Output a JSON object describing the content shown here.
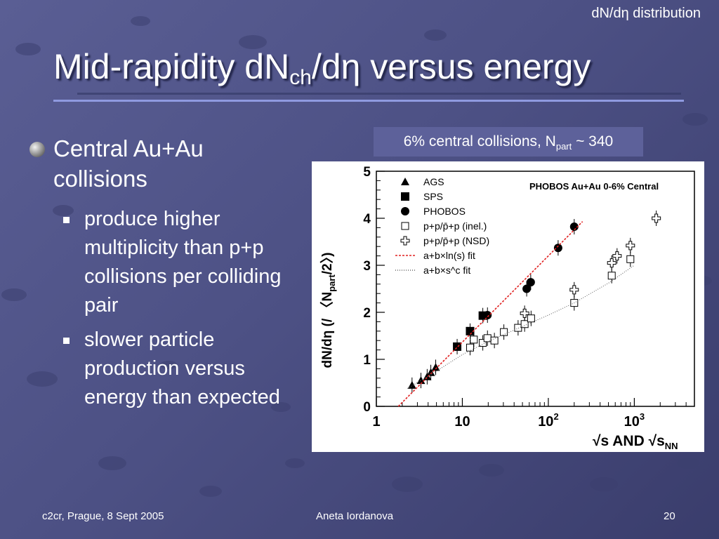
{
  "slide": {
    "corner_label": "dN/dη distribution",
    "title_main": "Mid-rapidity dN",
    "title_sub": "ch",
    "title_rest": "/dη versus energy",
    "bullet": "Central Au+Au collisions",
    "subbullets": [
      "produce higher multiplicity than p+p collisions per colliding pair",
      "slower particle production versus energy than expected"
    ],
    "note_main": "6% central collisions, N",
    "note_sub": "part",
    "note_rest": " ~ 340",
    "footer_left": "c2cr, Prague, 8 Sept 2005",
    "footer_center": "Aneta Iordanova",
    "footer_right": "20"
  },
  "chart_data": {
    "type": "scatter",
    "x_scale": "log",
    "xlim": [
      1,
      5000
    ],
    "ylim": [
      0,
      5
    ],
    "x_ticks": [
      {
        "v": 1,
        "t": "1",
        "sup": ""
      },
      {
        "v": 10,
        "t": "10",
        "sup": ""
      },
      {
        "v": 100,
        "t": "10",
        "sup": "2"
      },
      {
        "v": 1000,
        "t": "10",
        "sup": "3"
      }
    ],
    "y_ticks": [
      0,
      1,
      2,
      3,
      4,
      5
    ],
    "xlabel": "√s AND √s",
    "xlabel_sub": "NN",
    "ylabel": "dN/dη (/ 〈N",
    "ylabel_sub": "part",
    "ylabel_end": "/2〉)",
    "annotation": "PHOBOS Au+Au 0-6% Central",
    "colors": {
      "fit1": "#e02020",
      "fit2": "#666666",
      "marker": "#000000"
    },
    "series": [
      {
        "name": "AGS",
        "marker": "triangle",
        "points": [
          [
            2.6,
            0.45
          ],
          [
            3.3,
            0.55
          ],
          [
            3.9,
            0.63
          ],
          [
            4.3,
            0.72
          ],
          [
            4.9,
            0.83
          ]
        ]
      },
      {
        "name": "SPS",
        "marker": "square-filled",
        "points": [
          [
            8.7,
            1.27
          ],
          [
            12.3,
            1.6
          ],
          [
            17.3,
            1.93
          ]
        ]
      },
      {
        "name": "PHOBOS",
        "marker": "circle",
        "points": [
          [
            19.6,
            1.94
          ],
          [
            56,
            2.5
          ],
          [
            62.4,
            2.64
          ],
          [
            130,
            3.37
          ],
          [
            200,
            3.82
          ]
        ]
      },
      {
        "name": "p+p/p̄+p (inel.)",
        "marker": "square-open",
        "points": [
          [
            12.3,
            1.25
          ],
          [
            13.6,
            1.42
          ],
          [
            17.3,
            1.35
          ],
          [
            19.6,
            1.45
          ],
          [
            23.6,
            1.4
          ],
          [
            30.4,
            1.58
          ],
          [
            44.5,
            1.67
          ],
          [
            53,
            1.75
          ],
          [
            63,
            1.87
          ],
          [
            200,
            2.2
          ],
          [
            546,
            2.78
          ],
          [
            900,
            3.13
          ]
        ]
      },
      {
        "name": "p+p/p̄+p (NSD)",
        "marker": "cross-open",
        "points": [
          [
            53,
            1.98
          ],
          [
            200,
            2.48
          ],
          [
            546,
            3.05
          ],
          [
            630,
            3.2
          ],
          [
            900,
            3.42
          ],
          [
            1800,
            4.0
          ]
        ]
      },
      {
        "name": "a+b×ln(s) fit",
        "marker": "fit-red",
        "points": [
          [
            1.8,
            0
          ],
          [
            250,
            3.93
          ]
        ]
      },
      {
        "name": "a+b×s^c fit",
        "marker": "fit-dotted",
        "points": [
          [
            2.3,
            0.38
          ],
          [
            5,
            0.75
          ],
          [
            10,
            1.1
          ],
          [
            20,
            1.38
          ],
          [
            50,
            1.7
          ],
          [
            100,
            1.94
          ],
          [
            200,
            2.2
          ],
          [
            500,
            2.62
          ],
          [
            1000,
            3.0
          ]
        ]
      }
    ]
  }
}
